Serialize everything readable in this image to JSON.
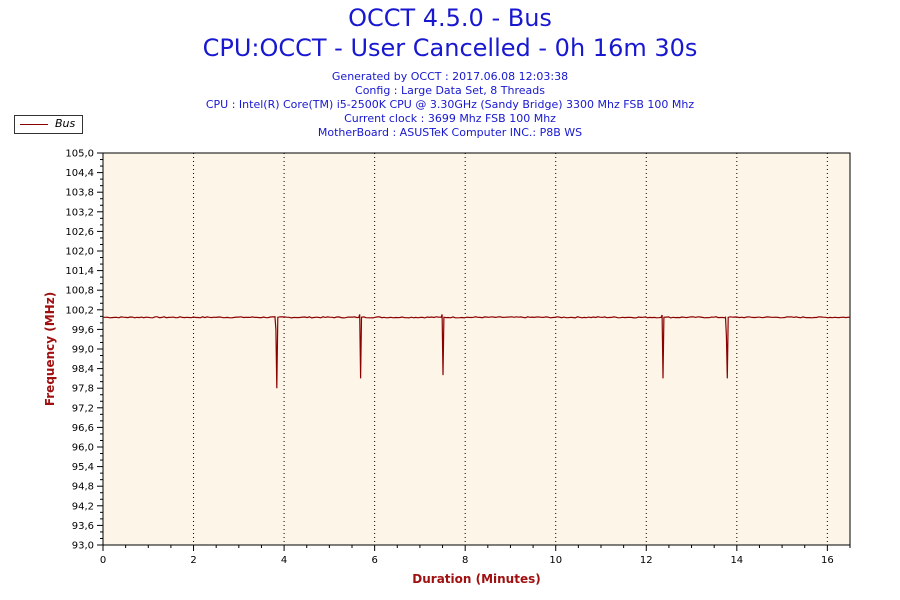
{
  "header": {
    "title_line1": "OCCT 4.5.0 - Bus",
    "title_line2": "CPU:OCCT - User Cancelled - 0h 16m 30s",
    "info": [
      "Generated by OCCT : 2017.06.08 12:03:38",
      "Config : Large Data Set, 8 Threads",
      "CPU : Intel(R) Core(TM) i5-2500K CPU @ 3.30GHz (Sandy Bridge) 3300 Mhz FSB 100 Mhz",
      "Current clock : 3699 Mhz FSB 100 Mhz",
      "MotherBoard : ASUSTeK Computer INC.: P8B WS"
    ]
  },
  "colors": {
    "title": "#1818d0",
    "plot_bg": "#fdf5e8",
    "series": "#8b0000",
    "axis_title": "#a01010"
  },
  "chart_data": {
    "type": "line",
    "xlabel": "Duration (Minutes)",
    "ylabel": "Frequency (MHz)",
    "xlim": [
      0,
      16.5
    ],
    "ylim": [
      93.0,
      105.0
    ],
    "x_ticks": [
      0,
      2,
      4,
      6,
      8,
      10,
      12,
      14,
      16
    ],
    "y_ticks": [
      93.0,
      93.6,
      94.2,
      94.8,
      95.4,
      96.0,
      96.6,
      97.2,
      97.8,
      98.4,
      99.0,
      99.6,
      100.2,
      100.8,
      101.4,
      102.0,
      102.6,
      103.2,
      103.8,
      104.4,
      105.0
    ],
    "y_tick_labels": [
      "93,0",
      "93,6",
      "94,2",
      "94,8",
      "95,4",
      "96,0",
      "96,6",
      "97,2",
      "97,8",
      "98,4",
      "99,0",
      "99,6",
      "100,2",
      "100,8",
      "101,4",
      "102,0",
      "102,6",
      "103,2",
      "103,8",
      "104,4",
      "105,0"
    ],
    "grid": "vertical dotted at major x ticks",
    "legend": "top-left",
    "series": [
      {
        "name": "Bus",
        "baseline": 99.97,
        "points": [
          [
            0,
            99.97
          ],
          [
            3.8,
            99.97
          ],
          [
            3.82,
            99.6
          ],
          [
            3.84,
            97.8
          ],
          [
            3.86,
            99.97
          ],
          [
            5.65,
            99.97
          ],
          [
            5.67,
            100.06
          ],
          [
            5.69,
            98.1
          ],
          [
            5.71,
            99.97
          ],
          [
            7.47,
            99.97
          ],
          [
            7.49,
            100.06
          ],
          [
            7.51,
            98.2
          ],
          [
            7.53,
            99.97
          ],
          [
            12.33,
            99.97
          ],
          [
            12.35,
            100.04
          ],
          [
            12.37,
            98.1
          ],
          [
            12.39,
            99.97
          ],
          [
            13.75,
            99.97
          ],
          [
            13.77,
            99.4
          ],
          [
            13.79,
            98.1
          ],
          [
            13.81,
            99.97
          ],
          [
            16.5,
            99.97
          ]
        ]
      }
    ]
  }
}
